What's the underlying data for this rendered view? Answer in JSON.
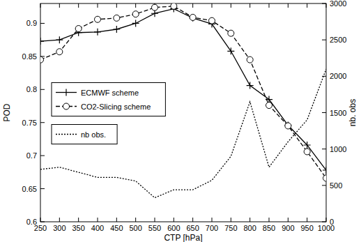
{
  "chart_data": {
    "type": "line",
    "x_label": "CTP [hPa]",
    "y_label": "POD",
    "y2_label": "nb. obs",
    "x": [
      250,
      300,
      350,
      400,
      450,
      500,
      550,
      600,
      650,
      700,
      750,
      800,
      850,
      900,
      950,
      1000
    ],
    "xlim": [
      250,
      1000
    ],
    "xticks": [
      250,
      300,
      350,
      400,
      450,
      500,
      550,
      600,
      650,
      700,
      750,
      800,
      850,
      900,
      950,
      1000
    ],
    "ylim": [
      0.6,
      0.93
    ],
    "yticks": [
      0.6,
      0.65,
      0.7,
      0.75,
      0.8,
      0.85,
      0.9
    ],
    "y2lim": [
      0,
      3000
    ],
    "y2ticks": [
      0,
      500,
      1000,
      1500,
      2000,
      2500,
      3000
    ],
    "legend": "center left",
    "grid": false,
    "series": [
      {
        "name": "ECMWF scheme",
        "color": "#000000",
        "marker": "plus",
        "line_style": "solid",
        "values": [
          0.873,
          0.875,
          0.886,
          0.887,
          0.891,
          0.9,
          0.915,
          0.922,
          0.908,
          0.899,
          0.858,
          0.806,
          0.785,
          0.746,
          0.716,
          0.678
        ]
      },
      {
        "name": "CO2-Slicing scheme",
        "color": "#000000",
        "marker": "circle",
        "line_style": "dashed",
        "values": [
          0.845,
          0.857,
          0.892,
          0.906,
          0.908,
          0.914,
          0.924,
          0.926,
          0.909,
          0.904,
          0.885,
          0.845,
          0.776,
          0.745,
          0.706,
          0.666
        ]
      },
      {
        "name": "nb obs.",
        "color": "#000000",
        "marker": "none",
        "line_style": "dotted",
        "axis": "y2",
        "values": [
          720,
          750,
          680,
          610,
          610,
          560,
          330,
          440,
          440,
          570,
          900,
          1650,
          750,
          1100,
          1400,
          2100
        ]
      }
    ]
  }
}
